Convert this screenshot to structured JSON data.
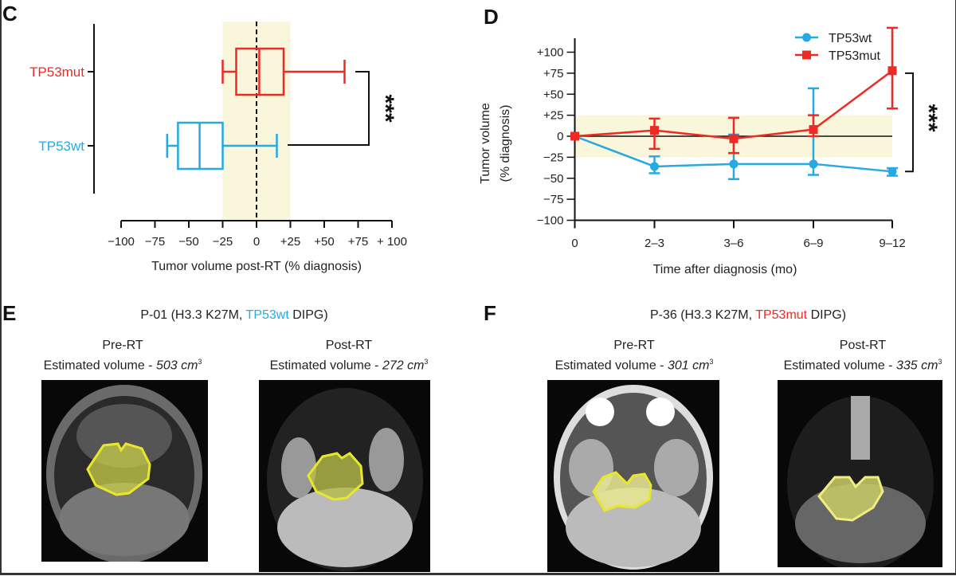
{
  "colors": {
    "wt": "#27a9e1",
    "mut": "#ee2a24",
    "band": "#faf6dc",
    "outline": "#e8e82a"
  },
  "panels": {
    "c": {
      "letter": "C"
    },
    "d": {
      "letter": "D"
    },
    "e": {
      "letter": "E",
      "title_prefix": "P-01 (H3.3 K27M, ",
      "title_group": "TP53wt",
      "title_suffix": " DIPG)",
      "pre_label": "Pre-RT",
      "pre_volume_prefix": "Estimated volume - ",
      "pre_volume": "503 cm",
      "post_label": "Post-RT",
      "post_volume_prefix": "Estimated volume - ",
      "post_volume": "272 cm",
      "unit_exp": "3"
    },
    "f": {
      "letter": "F",
      "title_prefix": "P-36 (H3.3 K27M, ",
      "title_group": "TP53mut",
      "title_suffix": " DIPG)",
      "pre_label": "Pre-RT",
      "pre_volume_prefix": "Estimated volume - ",
      "pre_volume": "301 cm",
      "post_label": "Post-RT",
      "post_volume_prefix": "Estimated volume - ",
      "post_volume": "335 cm",
      "unit_exp": "3"
    }
  },
  "chart_data": [
    {
      "type": "box",
      "orientation": "horizontal",
      "xlabel": "Tumor volume post-RT (% diagnosis)",
      "xlim": [
        -100,
        100
      ],
      "xticks": [
        -100,
        -75,
        -50,
        -25,
        0,
        25,
        50,
        75,
        100
      ],
      "xtick_labels": [
        "−100",
        "−75",
        "−50",
        "−25",
        "0",
        "+25",
        "+50",
        "+75",
        "+ 100"
      ],
      "shaded_band": [
        -25,
        25
      ],
      "reference_line": 0,
      "significance": "***",
      "series": [
        {
          "name": "TP53mut",
          "color": "#ee2a24",
          "min": -25,
          "q1": -15,
          "median": 2,
          "q3": 20,
          "max": 65
        },
        {
          "name": "TP53wt",
          "color": "#27a9e1",
          "min": -66,
          "q1": -58,
          "median": -42,
          "q3": -25,
          "max": 15
        }
      ]
    },
    {
      "type": "line",
      "xlabel": "Time after diagnosis (mo)",
      "ylabel": [
        "Tumor volume",
        "(% diagnosis)"
      ],
      "categories": [
        "0",
        "2–3",
        "3–6",
        "6–9",
        "9–12"
      ],
      "ylim": [
        -100,
        100
      ],
      "yticks": [
        -100,
        -75,
        -50,
        -25,
        0,
        25,
        50,
        75,
        100
      ],
      "ytick_labels": [
        "−100",
        "−75",
        "−50",
        "−25",
        "0",
        "+25",
        "+50",
        "+75",
        "+100"
      ],
      "shaded_band": [
        -25,
        25
      ],
      "reference_line": 0,
      "legend": "top-right",
      "significance": "***",
      "series": [
        {
          "name": "TP53wt",
          "color": "#27a9e1",
          "marker": "circle",
          "values": [
            0,
            -36,
            -33,
            -33,
            -42
          ],
          "err_high": [
            0,
            -24,
            2,
            57,
            -38
          ],
          "err_low": [
            0,
            -44,
            -51,
            -46,
            -47
          ]
        },
        {
          "name": "TP53mut",
          "color": "#ee2a24",
          "marker": "square",
          "values": [
            0,
            7,
            -3,
            8,
            78
          ],
          "err_high": [
            0,
            21,
            22,
            25,
            129
          ],
          "err_low": [
            0,
            -15,
            -20,
            0,
            33
          ]
        }
      ]
    }
  ]
}
